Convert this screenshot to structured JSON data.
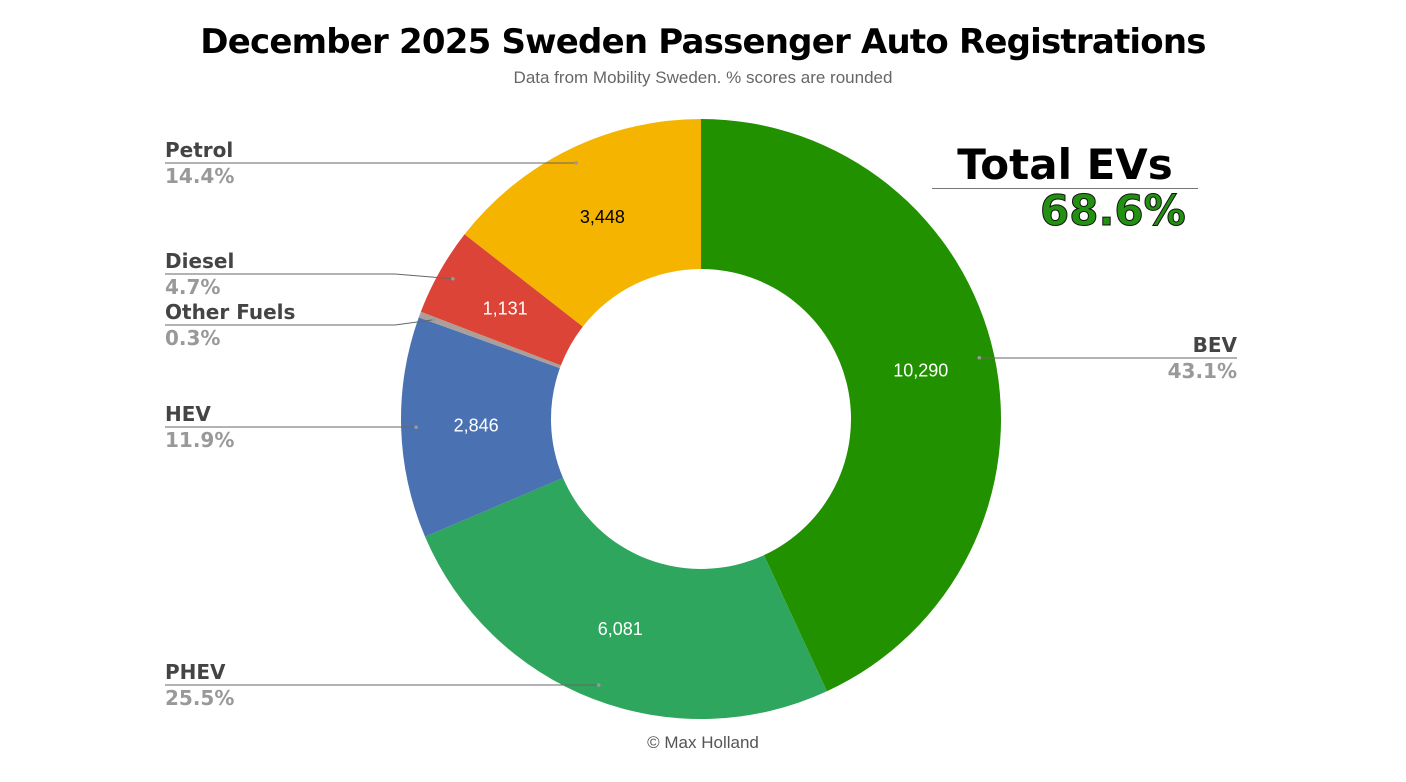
{
  "chart_data": {
    "type": "pie",
    "donut": true,
    "title": "December 2025 Sweden Passenger Auto Registrations",
    "subtitle": "Data from Mobility Sweden. % scores are rounded",
    "slices": [
      {
        "label": "BEV",
        "value": 10290,
        "value_label": "10,290",
        "percent": "43.1%",
        "color": "#229100"
      },
      {
        "label": "PHEV",
        "value": 6081,
        "value_label": "6,081",
        "percent": "25.5%",
        "color": "#2ea65e"
      },
      {
        "label": "HEV",
        "value": 2846,
        "value_label": "2,846",
        "percent": "11.9%",
        "color": "#4a72b3"
      },
      {
        "label": "Other Fuels",
        "value": 75,
        "value_label": "",
        "percent": "0.3%",
        "color": "#ab9f9a"
      },
      {
        "label": "Diesel",
        "value": 1131,
        "value_label": "1,131",
        "percent": "4.7%",
        "color": "#dc4437"
      },
      {
        "label": "Petrol",
        "value": 3448,
        "value_label": "3,448",
        "percent": "14.4%",
        "color": "#f4b400"
      }
    ],
    "legend": "callout-labels"
  },
  "annotation": {
    "title": "Total EVs",
    "value": "68.6%",
    "color": "#229111"
  },
  "credit": "© Max Holland"
}
